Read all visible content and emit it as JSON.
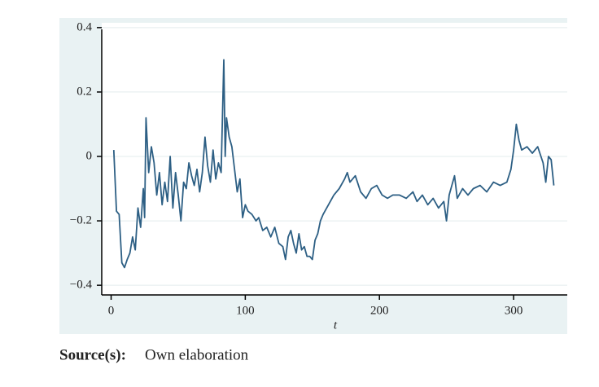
{
  "chart_data": {
    "type": "line",
    "x_label": "t",
    "source_label": "Source(s):",
    "source_text": "Own elaboration",
    "xlim": [
      -7,
      340
    ],
    "ylim": [
      -0.43,
      0.43
    ],
    "xticks": [
      0,
      100,
      200,
      300
    ],
    "yticks": [
      0.4,
      0.2,
      0,
      {
        "value": -0.2,
        "label": "−0.2"
      },
      {
        "value": -0.4,
        "label": "−0.4"
      }
    ],
    "grid": true,
    "x": [
      2,
      4,
      6,
      8,
      10,
      12,
      14,
      16,
      18,
      20,
      22,
      24,
      25,
      26,
      28,
      30,
      32,
      34,
      36,
      38,
      40,
      42,
      44,
      46,
      48,
      50,
      52,
      54,
      56,
      58,
      60,
      62,
      64,
      66,
      68,
      70,
      72,
      74,
      76,
      78,
      80,
      82,
      84,
      85,
      86,
      88,
      90,
      92,
      94,
      96,
      98,
      100,
      102,
      105,
      108,
      110,
      113,
      116,
      119,
      122,
      125,
      128,
      130,
      132,
      134,
      136,
      138,
      140,
      142,
      144,
      146,
      148,
      150,
      152,
      154,
      156,
      158,
      162,
      166,
      170,
      174,
      176,
      178,
      182,
      186,
      190,
      194,
      198,
      202,
      206,
      210,
      215,
      220,
      225,
      228,
      232,
      236,
      240,
      244,
      248,
      250,
      252,
      256,
      258,
      262,
      266,
      270,
      275,
      280,
      285,
      290,
      295,
      298,
      300,
      302,
      304,
      306,
      310,
      314,
      318,
      322,
      324,
      326,
      328,
      330
    ],
    "series": [
      {
        "color": "#2d5f84",
        "values": [
          0.02,
          -0.17,
          -0.18,
          -0.33,
          -0.345,
          -0.32,
          -0.3,
          -0.25,
          -0.29,
          -0.16,
          -0.22,
          -0.1,
          -0.19,
          0.12,
          -0.05,
          0.03,
          -0.02,
          -0.12,
          -0.05,
          -0.15,
          -0.08,
          -0.14,
          0.0,
          -0.16,
          -0.05,
          -0.12,
          -0.2,
          -0.08,
          -0.1,
          -0.02,
          -0.06,
          -0.09,
          -0.04,
          -0.11,
          -0.05,
          0.06,
          -0.03,
          -0.08,
          0.02,
          -0.07,
          -0.02,
          -0.05,
          0.3,
          0.0,
          0.12,
          0.06,
          0.03,
          -0.04,
          -0.11,
          -0.07,
          -0.19,
          -0.15,
          -0.17,
          -0.18,
          -0.2,
          -0.19,
          -0.23,
          -0.22,
          -0.25,
          -0.22,
          -0.27,
          -0.28,
          -0.32,
          -0.25,
          -0.23,
          -0.27,
          -0.3,
          -0.24,
          -0.29,
          -0.28,
          -0.31,
          -0.31,
          -0.32,
          -0.26,
          -0.24,
          -0.2,
          -0.18,
          -0.15,
          -0.12,
          -0.1,
          -0.07,
          -0.05,
          -0.08,
          -0.06,
          -0.11,
          -0.13,
          -0.1,
          -0.09,
          -0.12,
          -0.13,
          -0.12,
          -0.12,
          -0.13,
          -0.11,
          -0.14,
          -0.12,
          -0.15,
          -0.13,
          -0.16,
          -0.14,
          -0.2,
          -0.12,
          -0.06,
          -0.13,
          -0.1,
          -0.12,
          -0.1,
          -0.09,
          -0.11,
          -0.08,
          -0.09,
          -0.08,
          -0.04,
          0.02,
          0.1,
          0.05,
          0.02,
          0.03,
          0.01,
          0.03,
          -0.02,
          -0.08,
          0.0,
          -0.01,
          -0.09
        ]
      }
    ]
  }
}
